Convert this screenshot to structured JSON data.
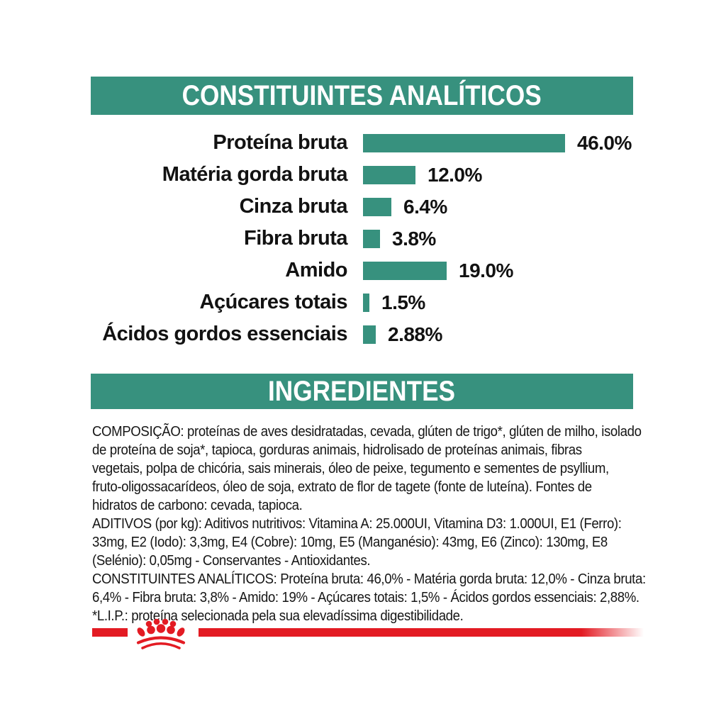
{
  "colors": {
    "green": "#37917E",
    "red": "#E31B23",
    "text": "#161616",
    "header_text": "#FFFFFF"
  },
  "sections": {
    "analytical_header": "CONSTITUINTES ANALÍTICOS",
    "ingredients_header": "INGREDIENTES"
  },
  "chart_data": {
    "type": "bar",
    "orientation": "horizontal",
    "title": "CONSTITUINTES ANALÍTICOS",
    "categories": [
      "Proteína bruta",
      "Matéria gorda bruta",
      "Cinza bruta",
      "Fibra bruta",
      "Amido",
      "Açúcares totais",
      "Ácidos gordos essenciais"
    ],
    "values": [
      46.0,
      12.0,
      6.4,
      3.8,
      19.0,
      1.5,
      2.88
    ],
    "value_labels": [
      "46.0%",
      "12.0%",
      "6.4%",
      "3.8%",
      "19.0%",
      "1.5%",
      "2.88%"
    ],
    "bar_color": "#37917E",
    "xlim": [
      0,
      50
    ],
    "grid": false,
    "legend": false
  },
  "ingredients_text": {
    "lines": [
      "COMPOSIÇÃO: proteínas de aves desidratadas, cevada, glúten de trigo*, glúten de milho, isolado",
      "de proteína de soja*, tapioca, gorduras animais, hidrolisado de proteínas animais, fibras",
      "vegetais, polpa de chicória, sais minerais, óleo de peixe, tegumento e sementes de psyllium,",
      "fruto-oligossacarídeos, óleo de soja, extrato de flor de tagete (fonte de luteína). Fontes de",
      "hidratos de carbono: cevada, tapioca.",
      "ADITIVOS (por kg): Aditivos nutritivos: Vitamina A: 25.000UI, Vitamina D3: 1.000UI, E1 (Ferro):",
      "33mg, E2 (Iodo): 3,3mg, E4 (Cobre): 10mg, E5 (Manganésio): 43mg, E6 (Zinco): 130mg, E8",
      "(Selénio): 0,05mg - Conservantes - Antioxidantes.",
      "CONSTITUINTES ANALÍTICOS: Proteína bruta: 46,0% - Matéria gorda bruta: 12,0% - Cinza bruta:",
      "6,4% - Fibra bruta: 3,8% - Amido: 19% - Açúcares totais: 1,5% - Ácidos gordos essenciais: 2,88%.",
      "*L.I.P.: proteína selecionada pela sua elevadíssima digestibilidade."
    ]
  },
  "footer": {
    "crown_icon": "royal-canin-crown"
  }
}
